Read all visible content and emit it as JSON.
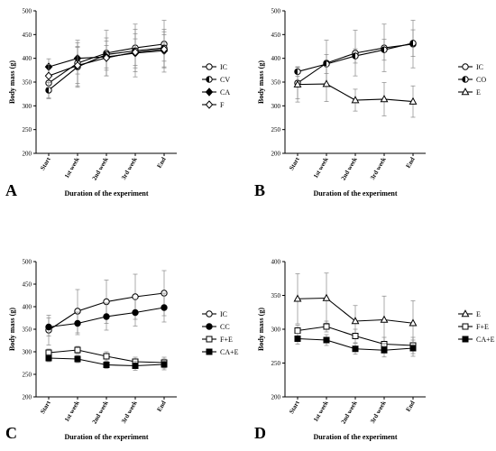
{
  "chart_data": [
    {
      "panel": "A",
      "type": "line",
      "categories": [
        "Start",
        "1st week",
        "2nd week",
        "3rd week",
        "End"
      ],
      "xlabel": "Duration of the experiment",
      "ylabel": "Body mass (g)",
      "ylim": [
        200,
        500
      ],
      "yticks": [
        200,
        250,
        300,
        350,
        400,
        450,
        500
      ],
      "legend_position": "right",
      "series": [
        {
          "name": "IC",
          "marker": "circle-open",
          "values": [
            348,
            390,
            411,
            422,
            430
          ],
          "err": [
            33,
            48,
            48,
            50,
            50
          ]
        },
        {
          "name": "CV",
          "marker": "halfcircle-left",
          "values": [
            333,
            382,
            408,
            416,
            422
          ],
          "err": [
            16,
            43,
            28,
            36,
            28
          ]
        },
        {
          "name": "CA",
          "marker": "diamond-filled",
          "values": [
            382,
            400,
            403,
            411,
            416
          ],
          "err": [
            17,
            33,
            40,
            50,
            45
          ]
        },
        {
          "name": "F",
          "marker": "diamond-open",
          "values": [
            363,
            385,
            401,
            413,
            419
          ],
          "err": [
            24,
            38,
            26,
            28,
            37
          ]
        }
      ]
    },
    {
      "panel": "B",
      "type": "line",
      "categories": [
        "Start",
        "1st week",
        "2nd week",
        "3rd week",
        "End"
      ],
      "xlabel": "Duration of the experiment",
      "ylabel": "Body mass (g)",
      "ylim": [
        200,
        500
      ],
      "yticks": [
        200,
        250,
        300,
        350,
        400,
        450,
        500
      ],
      "legend_position": "right",
      "series": [
        {
          "name": "IC",
          "marker": "circle-open",
          "values": [
            348,
            390,
            411,
            422,
            430
          ],
          "err": [
            33,
            48,
            48,
            50,
            50
          ]
        },
        {
          "name": "CO",
          "marker": "halfcircle-left",
          "values": [
            372,
            388,
            405,
            418,
            432
          ],
          "err": [
            10,
            20,
            15,
            22,
            28
          ]
        },
        {
          "name": "E",
          "marker": "triangle-open",
          "values": [
            345,
            346,
            312,
            314,
            309
          ],
          "err": [
            37,
            37,
            23,
            35,
            33
          ]
        }
      ]
    },
    {
      "panel": "C",
      "type": "line",
      "categories": [
        "Start",
        "1st week",
        "2nd week",
        "3rd week",
        "End"
      ],
      "xlabel": "Duration of the experiment",
      "ylabel": "Body mass (g)",
      "ylim": [
        200,
        500
      ],
      "yticks": [
        200,
        250,
        300,
        350,
        400,
        450,
        500
      ],
      "legend_position": "right",
      "series": [
        {
          "name": "IC",
          "marker": "circle-open",
          "values": [
            348,
            390,
            411,
            422,
            430
          ],
          "err": [
            33,
            48,
            48,
            50,
            50
          ]
        },
        {
          "name": "CC",
          "marker": "circle-filled",
          "values": [
            355,
            363,
            378,
            387,
            398
          ],
          "err": [
            20,
            25,
            30,
            30,
            32
          ]
        },
        {
          "name": "F+E",
          "marker": "square-open",
          "values": [
            298,
            304,
            290,
            278,
            276
          ],
          "err": [
            8,
            8,
            10,
            10,
            12
          ]
        },
        {
          "name": "CA+E",
          "marker": "square-filled",
          "values": [
            286,
            284,
            271,
            269,
            272
          ],
          "err": [
            8,
            8,
            8,
            10,
            12
          ]
        }
      ]
    },
    {
      "panel": "D",
      "type": "line",
      "categories": [
        "Start",
        "1st week",
        "2nd week",
        "3rd week",
        "End"
      ],
      "xlabel": "Duration of the experiment",
      "ylabel": "Body mass (g)",
      "ylim": [
        200,
        400
      ],
      "yticks": [
        200,
        250,
        300,
        350,
        400
      ],
      "legend_position": "right",
      "series": [
        {
          "name": "E",
          "marker": "triangle-open",
          "values": [
            345,
            346,
            312,
            314,
            309
          ],
          "err": [
            37,
            37,
            23,
            35,
            33
          ]
        },
        {
          "name": "F+E",
          "marker": "square-open",
          "values": [
            298,
            304,
            290,
            278,
            276
          ],
          "err": [
            8,
            8,
            10,
            10,
            12
          ]
        },
        {
          "name": "CA+E",
          "marker": "square-filled",
          "values": [
            286,
            284,
            271,
            269,
            272
          ],
          "err": [
            8,
            8,
            8,
            10,
            12
          ]
        }
      ]
    }
  ]
}
